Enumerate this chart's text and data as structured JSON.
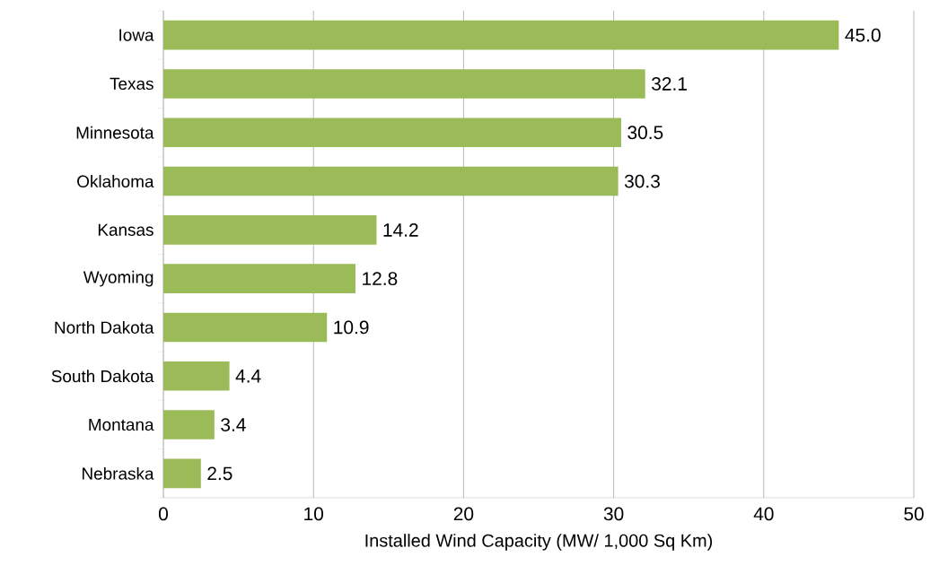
{
  "chart_data": {
    "type": "bar",
    "orientation": "horizontal",
    "xlabel": "Installed Wind Capacity (MW/ 1,000 Sq Km)",
    "categories": [
      "Iowa",
      "Texas",
      "Minnesota",
      "Oklahoma",
      "Kansas",
      "Wyoming",
      "North Dakota",
      "South Dakota",
      "Montana",
      "Nebraska"
    ],
    "values": [
      45.0,
      32.1,
      30.5,
      30.3,
      14.2,
      12.8,
      10.9,
      4.4,
      3.4,
      2.5
    ],
    "value_labels": [
      "45.0",
      "32.1",
      "30.5",
      "30.3",
      "14.2",
      "12.8",
      "10.9",
      "4.4",
      "3.4",
      "2.5"
    ],
    "color": "#9bbb59",
    "xlim": [
      0,
      50
    ],
    "xticks": [
      0,
      10,
      20,
      30,
      40,
      50
    ],
    "grid": "x"
  }
}
